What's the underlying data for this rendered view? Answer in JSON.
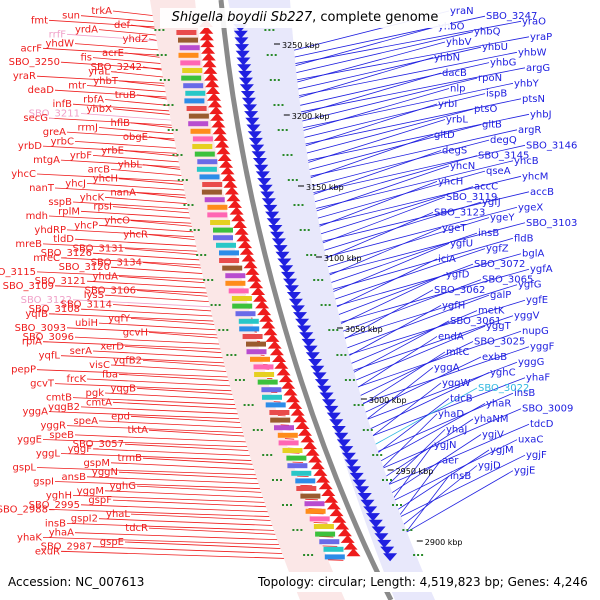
{
  "title": {
    "organism": "Shigella boydii Sb227",
    "suffix": ", complete genome"
  },
  "footer": {
    "accession_label": "Accession:",
    "accession": "NC_007613",
    "topology_label": "Topology:",
    "topology": "circular",
    "length_label": "Length:",
    "length": "4,519,823 bp",
    "genes_label": "Genes:",
    "genes": "4,246"
  },
  "colors": {
    "forward_strand": "#ee1c1c",
    "reverse_strand": "#2020e0",
    "highlight_forward": "#f0a0c8",
    "highlight_reverse": "#30b8e0",
    "backbone": "#8a8a8a",
    "tick_marker": "#2a8a2a"
  },
  "kbp_ticks": [
    "3250 kbp",
    "3200 kbp",
    "3150 kbp",
    "3100 kbp",
    "3050 kbp",
    "3000 kbp",
    "2950 kbp",
    "2900 kbp"
  ],
  "left_genes": [
    "trkA",
    "sun",
    "fmt",
    "def",
    "yrdA",
    "rrfF",
    "yhdZ",
    "yhdW",
    "acrF",
    "acrE",
    "fis",
    "SBO_3250",
    "SBO_3242",
    "yraL",
    "yraR",
    "yhbT",
    "mtr",
    "deaD",
    "truB",
    "rbfA",
    "infB",
    "yhbX",
    "SBO_3211",
    "secG",
    "hflB",
    "rrmJ",
    "greA",
    "obgE",
    "yrbC",
    "yrbD",
    "yrbE",
    "yrbF",
    "mtgA",
    "yhbL",
    "arcB",
    "yhcC",
    "yhcH",
    "yhcJ",
    "nanT",
    "nanA",
    "yhcK",
    "sspB",
    "rpsI",
    "rplM",
    "mdh",
    "yhcO",
    "yhcP",
    "yhdRP",
    "yhcR",
    "tldD",
    "mreB",
    "SBO_3131",
    "SBO_3126",
    "mreC",
    "SBO_3134",
    "SBO_3120",
    "SBO_3115",
    "yhdA",
    "SBO_3121",
    "SBO_3109",
    "SBO_3106",
    "lysS",
    "SBO_3122",
    "SBO_3114",
    "SBO_3108",
    "yqfB",
    "yqfY",
    "ubiH",
    "SBO_3093",
    "gcvH",
    "SBO_3096",
    "rpiA",
    "xerD",
    "serA",
    "yqfL",
    "yqfB2",
    "visC",
    "pepP",
    "fba",
    "frcK",
    "gcvT",
    "yqgB",
    "pgk",
    "cmtB",
    "cmtA",
    "yqgB2",
    "yggA",
    "epd",
    "speA",
    "yggR",
    "tktA",
    "speB",
    "yggE",
    "SBO_3057",
    "yggF",
    "yggL",
    "trmB",
    "gspM",
    "gspL",
    "yggN",
    "ansB",
    "gspI",
    "yghG",
    "yggM",
    "yghH",
    "gspF",
    "SBO_2995",
    "SBO_2988",
    "yhaL",
    "gspI2",
    "insB",
    "tdcR",
    "yhaA",
    "yhaK",
    "gspE",
    "SBO_2987",
    "exuR"
  ],
  "right_genes": [
    "yraN",
    "SBO_3247",
    "yraO",
    "yhbO",
    "yhbQ",
    "yraP",
    "yhbV",
    "yhbU",
    "yhbW",
    "yhbN",
    "yhbG",
    "argG",
    "dacB",
    "rpoN",
    "yhbY",
    "nlp",
    "ispB",
    "ptsN",
    "yrbI",
    "ptsO",
    "yhbJ",
    "yrbL",
    "gltB",
    "argR",
    "gltD",
    "degQ",
    "SBO_3146",
    "degS",
    "SBO_3145",
    "yhcB",
    "yhcN",
    "qseA",
    "yhcM",
    "yhcH",
    "accC",
    "accB",
    "SBO_3119",
    "ygfJ",
    "ygeX",
    "SBO_3123",
    "ygeY",
    "SBO_3103",
    "ygeT",
    "insB",
    "fldB",
    "ygfU",
    "ygfZ",
    "bglA",
    "iciA",
    "SBO_3072",
    "ygfA",
    "ygfD",
    "SBO_3065",
    "ygfG",
    "SBO_3062",
    "galP",
    "ygfE",
    "ygfH",
    "metK",
    "yggV",
    "SBO_3061",
    "yggT",
    "nupG",
    "endA",
    "SBO_3025",
    "yggF",
    "mltC",
    "exbB",
    "yggG",
    "yggA",
    "yghC",
    "yhaF",
    "yggW",
    "SBO_3022",
    "insB",
    "tdcB",
    "yhaR",
    "SBO_3009",
    "yhaD",
    "yhaNM",
    "tdcD",
    "yhaJ",
    "ygjV",
    "uxaC",
    "ygjN",
    "ygjM",
    "ygjF",
    "aer",
    "ygjD",
    "ygjE",
    "insB"
  ],
  "right_highlight": [
    "SBO_3022"
  ],
  "left_highlight": [
    "rrfF",
    "SBO_3211",
    "SBO_3122"
  ]
}
